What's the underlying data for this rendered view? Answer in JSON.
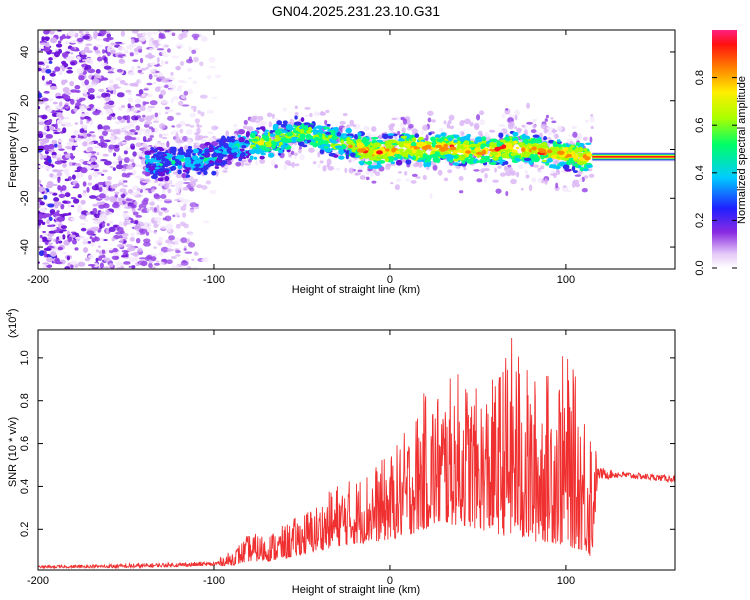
{
  "title": "GN04.2025.231.23.10.G31",
  "colorbar": {
    "label": "Normalized spectral amplitude",
    "ticks": [
      "0.0",
      "0.2",
      "0.4",
      "0.6",
      "0.8"
    ],
    "tick_values": [
      0.0,
      0.2,
      0.4,
      0.6,
      0.8
    ],
    "range": [
      0,
      1
    ]
  },
  "chart_data": [
    {
      "type": "heatmap",
      "xlabel": "Height of straight line (km)",
      "ylabel": "Frequency (Hz)",
      "xlim": [
        -200,
        162
      ],
      "ylim": [
        -49,
        49
      ],
      "xticks": [
        "-200",
        "-100",
        "0",
        "100"
      ],
      "xtick_values": [
        -200,
        -100,
        0,
        100
      ],
      "yticks": [
        "-40",
        "-20",
        "0",
        "20",
        "40"
      ],
      "ytick_values": [
        -40,
        -20,
        0,
        20,
        40
      ],
      "ridge": {
        "x": [
          -140,
          -120,
          -100,
          -90,
          -80,
          -70,
          -60,
          -50,
          -40,
          -30,
          -20,
          -10,
          0,
          10,
          20,
          30,
          40,
          50,
          60,
          70,
          80,
          90,
          100,
          110,
          115,
          162
        ],
        "y": [
          -6,
          -5,
          -3,
          0,
          2,
          3,
          5,
          7,
          5,
          3,
          1,
          -1,
          0,
          1,
          0,
          1,
          0,
          -1,
          0,
          1,
          0,
          -1,
          -2,
          -3,
          -3,
          -3
        ]
      },
      "noise_region_x": [
        -200,
        -95
      ]
    },
    {
      "type": "line",
      "xlabel": "Height of straight line (km)",
      "ylabel": "SNR (10 * v/v)",
      "yscale_label": "(x10",
      "yscale_exp": "4",
      "xlim": [
        -200,
        162
      ],
      "ylim": [
        0.01,
        1.13
      ],
      "xticks": [
        "-200",
        "-100",
        "0",
        "100"
      ],
      "xtick_values": [
        -200,
        -100,
        0,
        100
      ],
      "yticks": [
        "0.2",
        "0.4",
        "0.6",
        "0.8",
        "1.0"
      ],
      "ytick_values": [
        0.2,
        0.4,
        0.6,
        0.8,
        1.0
      ],
      "color": "#f03030",
      "envelope": {
        "x": [
          -200,
          -150,
          -100,
          -90,
          -80,
          -70,
          -60,
          -50,
          -40,
          -30,
          -20,
          -10,
          0,
          10,
          20,
          30,
          40,
          50,
          60,
          70,
          80,
          90,
          100,
          110,
          115,
          118,
          130,
          162
        ],
        "low": [
          0.02,
          0.02,
          0.03,
          0.03,
          0.05,
          0.05,
          0.06,
          0.08,
          0.1,
          0.12,
          0.13,
          0.14,
          0.15,
          0.17,
          0.2,
          0.22,
          0.22,
          0.2,
          0.18,
          0.16,
          0.14,
          0.14,
          0.12,
          0.1,
          0.06,
          0.43,
          0.44,
          0.42
        ],
        "high": [
          0.03,
          0.04,
          0.05,
          0.1,
          0.18,
          0.18,
          0.22,
          0.28,
          0.33,
          0.42,
          0.44,
          0.5,
          0.55,
          0.68,
          0.85,
          0.88,
          0.95,
          0.85,
          0.92,
          1.13,
          0.92,
          0.95,
          1.04,
          0.82,
          0.78,
          0.49,
          0.47,
          0.45
        ]
      }
    }
  ]
}
